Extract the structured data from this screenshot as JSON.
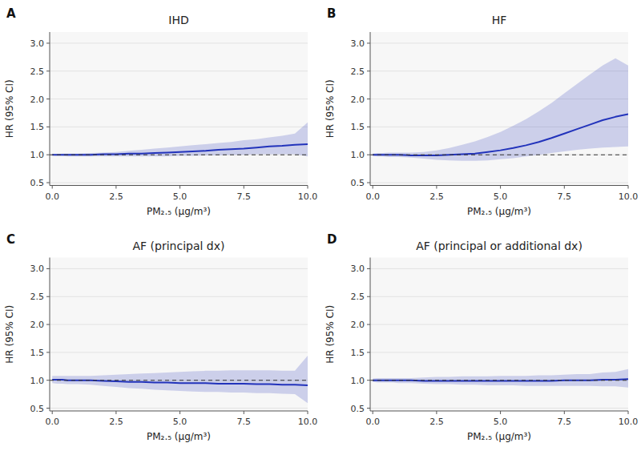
{
  "chart_data": [
    {
      "type": "line",
      "panel_label": "A",
      "title": "IHD",
      "x": [
        0.0,
        0.2,
        0.4,
        0.6,
        0.8,
        1.0,
        1.5,
        2.0,
        2.5,
        3.0,
        3.5,
        4.0,
        4.5,
        5.0,
        5.5,
        6.0,
        6.5,
        7.0,
        7.5,
        8.0,
        8.5,
        9.0,
        9.5,
        10.0
      ],
      "series": [
        {
          "color": "#2233bb",
          "values": [
            1.0,
            1.0,
            1.0,
            1.0,
            1.0,
            1.0,
            1.0,
            1.01,
            1.01,
            1.02,
            1.02,
            1.03,
            1.04,
            1.05,
            1.06,
            1.07,
            1.09,
            1.1,
            1.11,
            1.13,
            1.15,
            1.16,
            1.18,
            1.19
          ],
          "ci_lo": [
            0.99,
            0.98,
            0.98,
            0.97,
            0.97,
            0.97,
            0.97,
            0.97,
            0.97,
            0.97,
            0.97,
            0.97,
            0.97,
            0.98,
            0.98,
            0.99,
            0.99,
            1.0,
            1.0,
            1.01,
            1.01,
            1.01,
            1.01,
            0.97
          ],
          "ci_hi": [
            1.01,
            1.01,
            1.02,
            1.02,
            1.02,
            1.02,
            1.03,
            1.04,
            1.05,
            1.07,
            1.09,
            1.11,
            1.13,
            1.15,
            1.17,
            1.19,
            1.21,
            1.23,
            1.26,
            1.28,
            1.31,
            1.34,
            1.38,
            1.58
          ]
        }
      ],
      "ref_line": 1.0,
      "xlabel": "PM₂.₅ (μg/m³)",
      "ylabel": "HR (95% CI)",
      "xlim": [
        -0.1,
        10.0
      ],
      "xticks": [
        {
          "value": 0.0,
          "label": "0.0"
        },
        2.5,
        {
          "value": 5.0,
          "label": "5.0"
        },
        7.5,
        {
          "value": 10.0,
          "label": "10.0"
        }
      ],
      "ylim": [
        0.45,
        3.2
      ],
      "yticks": [
        0.5,
        {
          "value": 1.0,
          "label": "1.0"
        },
        1.5,
        {
          "value": 2.0,
          "label": "2.0"
        },
        2.5,
        {
          "value": 3.0,
          "label": "3.0"
        }
      ]
    },
    {
      "type": "line",
      "panel_label": "B",
      "title": "HF",
      "x": [
        0.0,
        0.2,
        0.4,
        0.6,
        0.8,
        1.0,
        1.5,
        2.0,
        2.5,
        3.0,
        3.5,
        4.0,
        4.5,
        5.0,
        5.5,
        6.0,
        6.5,
        7.0,
        7.5,
        8.0,
        8.5,
        9.0,
        9.5,
        10.0
      ],
      "series": [
        {
          "color": "#2233bb",
          "values": [
            1.0,
            1.0,
            1.0,
            1.0,
            1.0,
            1.0,
            0.99,
            0.99,
            0.99,
            1.0,
            1.01,
            1.02,
            1.05,
            1.08,
            1.12,
            1.17,
            1.23,
            1.3,
            1.38,
            1.46,
            1.54,
            1.62,
            1.68,
            1.73
          ],
          "ci_lo": [
            0.98,
            0.97,
            0.97,
            0.96,
            0.96,
            0.96,
            0.95,
            0.93,
            0.91,
            0.9,
            0.89,
            0.89,
            0.9,
            0.92,
            0.94,
            0.97,
            1.0,
            1.03,
            1.06,
            1.09,
            1.11,
            1.13,
            1.14,
            1.15
          ],
          "ci_hi": [
            1.02,
            1.03,
            1.03,
            1.04,
            1.04,
            1.04,
            1.04,
            1.05,
            1.08,
            1.12,
            1.18,
            1.24,
            1.32,
            1.41,
            1.52,
            1.64,
            1.78,
            1.93,
            2.1,
            2.27,
            2.44,
            2.6,
            2.73,
            2.6
          ]
        }
      ],
      "ref_line": 1.0,
      "xlabel": "PM₂.₅ (μg/m³)",
      "ylabel": "HR (95% CI)",
      "xlim": [
        -0.1,
        10.0
      ],
      "xticks": [
        {
          "value": 0.0,
          "label": "0.0"
        },
        2.5,
        {
          "value": 5.0,
          "label": "5.0"
        },
        7.5,
        {
          "value": 10.0,
          "label": "10.0"
        }
      ],
      "ylim": [
        0.45,
        3.2
      ],
      "yticks": [
        0.5,
        {
          "value": 1.0,
          "label": "1.0"
        },
        1.5,
        {
          "value": 2.0,
          "label": "2.0"
        },
        2.5,
        {
          "value": 3.0,
          "label": "3.0"
        }
      ]
    },
    {
      "type": "line",
      "panel_label": "C",
      "title": "AF  (principal dx)",
      "x": [
        0.0,
        0.2,
        0.4,
        0.6,
        0.8,
        1.0,
        1.5,
        2.0,
        2.5,
        3.0,
        3.5,
        4.0,
        4.5,
        5.0,
        5.5,
        6.0,
        6.5,
        7.0,
        7.5,
        8.0,
        8.5,
        9.0,
        9.5,
        10.0
      ],
      "series": [
        {
          "color": "#2233bb",
          "values": [
            1.01,
            1.01,
            1.01,
            1.0,
            1.0,
            1.0,
            1.0,
            0.99,
            0.98,
            0.97,
            0.97,
            0.96,
            0.96,
            0.95,
            0.95,
            0.95,
            0.94,
            0.94,
            0.94,
            0.93,
            0.93,
            0.92,
            0.92,
            0.91
          ],
          "ci_lo": [
            0.95,
            0.94,
            0.94,
            0.93,
            0.93,
            0.93,
            0.92,
            0.9,
            0.88,
            0.86,
            0.85,
            0.83,
            0.82,
            0.81,
            0.8,
            0.79,
            0.79,
            0.78,
            0.78,
            0.77,
            0.77,
            0.76,
            0.75,
            0.59
          ],
          "ci_hi": [
            1.08,
            1.08,
            1.08,
            1.08,
            1.08,
            1.08,
            1.08,
            1.09,
            1.1,
            1.11,
            1.12,
            1.13,
            1.14,
            1.15,
            1.16,
            1.17,
            1.17,
            1.18,
            1.18,
            1.18,
            1.18,
            1.17,
            1.17,
            1.44
          ]
        }
      ],
      "ref_line": 1.0,
      "xlabel": "PM₂.₅ (μg/m³)",
      "ylabel": "HR (95% CI)",
      "xlim": [
        -0.1,
        10.0
      ],
      "xticks": [
        {
          "value": 0.0,
          "label": "0.0"
        },
        2.5,
        {
          "value": 5.0,
          "label": "5.0"
        },
        7.5,
        {
          "value": 10.0,
          "label": "10.0"
        }
      ],
      "ylim": [
        0.45,
        3.2
      ],
      "yticks": [
        0.5,
        {
          "value": 1.0,
          "label": "1.0"
        },
        1.5,
        {
          "value": 2.0,
          "label": "2.0"
        },
        2.5,
        {
          "value": 3.0,
          "label": "3.0"
        }
      ]
    },
    {
      "type": "line",
      "panel_label": "D",
      "title": "AF (principal or additional dx)",
      "x": [
        0.0,
        0.2,
        0.4,
        0.6,
        0.8,
        1.0,
        1.5,
        2.0,
        2.5,
        3.0,
        3.5,
        4.0,
        4.5,
        5.0,
        5.5,
        6.0,
        6.5,
        7.0,
        7.5,
        8.0,
        8.5,
        9.0,
        9.5,
        10.0
      ],
      "series": [
        {
          "color": "#2233bb",
          "values": [
            1.0,
            1.0,
            1.0,
            1.0,
            1.0,
            1.0,
            1.0,
            0.99,
            0.99,
            0.99,
            0.99,
            0.99,
            0.99,
            0.99,
            0.99,
            0.99,
            0.99,
            0.99,
            1.0,
            1.0,
            1.0,
            1.01,
            1.01,
            1.02
          ],
          "ci_lo": [
            0.97,
            0.96,
            0.96,
            0.96,
            0.96,
            0.95,
            0.95,
            0.94,
            0.93,
            0.93,
            0.92,
            0.92,
            0.91,
            0.91,
            0.91,
            0.9,
            0.9,
            0.9,
            0.9,
            0.9,
            0.9,
            0.89,
            0.89,
            0.87
          ],
          "ci_hi": [
            1.03,
            1.04,
            1.04,
            1.04,
            1.04,
            1.04,
            1.04,
            1.05,
            1.06,
            1.06,
            1.07,
            1.07,
            1.07,
            1.08,
            1.08,
            1.08,
            1.09,
            1.09,
            1.1,
            1.11,
            1.11,
            1.14,
            1.15,
            1.2
          ]
        }
      ],
      "ref_line": 1.0,
      "xlabel": "PM₂.₅ (μg/m³)",
      "ylabel": "HR (95% CI)",
      "xlim": [
        -0.1,
        10.0
      ],
      "xticks": [
        {
          "value": 0.0,
          "label": "0.0"
        },
        2.5,
        {
          "value": 5.0,
          "label": "5.0"
        },
        7.5,
        {
          "value": 10.0,
          "label": "10.0"
        }
      ],
      "ylim": [
        0.45,
        3.2
      ],
      "yticks": [
        0.5,
        {
          "value": 1.0,
          "label": "1.0"
        },
        1.5,
        {
          "value": 2.0,
          "label": "2.0"
        },
        2.5,
        {
          "value": 3.0,
          "label": "3.0"
        }
      ]
    }
  ]
}
